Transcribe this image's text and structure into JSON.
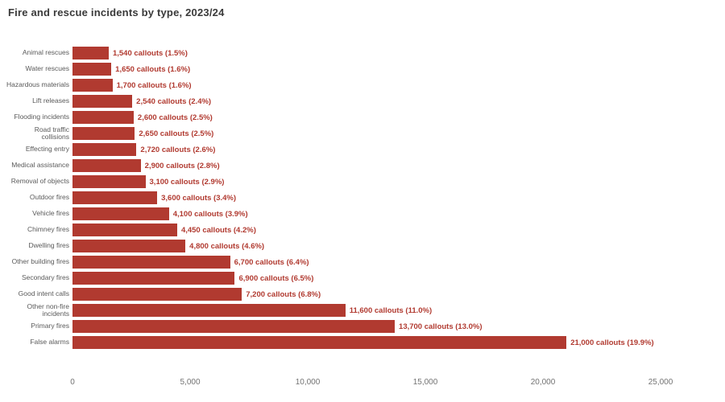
{
  "chart_data": {
    "type": "bar",
    "orientation": "horizontal",
    "title": "Fire and rescue incidents by type, 2023/24",
    "bar_color": "#b13a30",
    "value_label_color": "#b13a30",
    "axis_text_color": "#737373",
    "category_text_color": "#5a5a5a",
    "grid": false,
    "legend": false,
    "xlim": [
      0,
      25000
    ],
    "x_ticks": [
      0,
      5000,
      10000,
      15000,
      20000,
      25000
    ],
    "x_tick_labels": [
      "0",
      "5,000",
      "10,000",
      "15,000",
      "20,000",
      "25,000"
    ],
    "categories": [
      "Animal rescues",
      "Water rescues",
      "Hazardous materials",
      "Lift releases",
      "Flooding incidents",
      "Road traffic collisions",
      "Effecting entry",
      "Medical assistance",
      "Removal of objects",
      "Outdoor fires",
      "Vehicle fires",
      "Chimney fires",
      "Dwelling fires",
      "Other building fires",
      "Secondary fires",
      "Good intent calls",
      "Other non-fire incidents",
      "Primary fires",
      "False alarms"
    ],
    "values": [
      1540,
      1650,
      1700,
      2540,
      2600,
      2650,
      2720,
      2900,
      3100,
      3600,
      4100,
      4450,
      4800,
      6700,
      6900,
      7200,
      11600,
      13700,
      21000
    ],
    "value_labels": [
      "1,540 callouts (1.5%)",
      "1,650 callouts (1.6%)",
      "1,700 callouts (1.6%)",
      "2,540 callouts (2.4%)",
      "2,600 callouts (2.5%)",
      "2,650 callouts (2.5%)",
      "2,720 callouts (2.6%)",
      "2,900 callouts (2.8%)",
      "3,100 callouts (2.9%)",
      "3,600 callouts (3.4%)",
      "4,100 callouts (3.9%)",
      "4,450 callouts (4.2%)",
      "4,800 callouts (4.6%)",
      "6,700 callouts (6.4%)",
      "6,900 callouts (6.5%)",
      "7,200 callouts (6.8%)",
      "11,600 callouts (11.0%)",
      "13,700 callouts (13.0%)",
      "21,000 callouts (19.9%)"
    ]
  }
}
